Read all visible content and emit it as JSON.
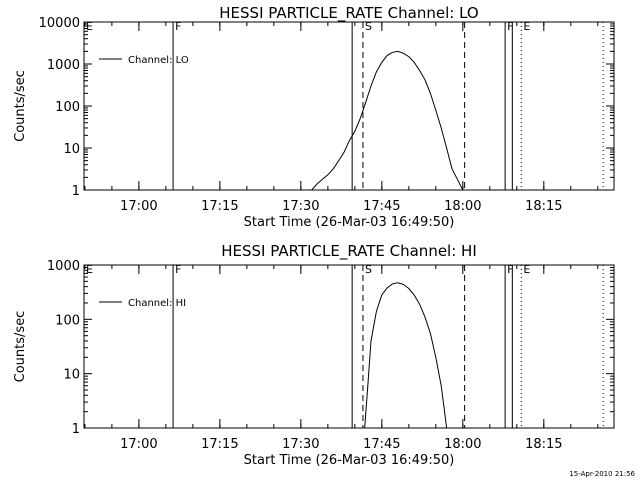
{
  "timestamp": "15-Apr-2010 21:56",
  "chart_data": [
    {
      "type": "line",
      "title": "HESSI PARTICLE_RATE Channel: LO",
      "xlabel": "Start Time (26-Mar-03 16:49:50)",
      "ylabel": "Counts/sec",
      "yscale": "log",
      "ylim": [
        1,
        10000
      ],
      "y_ticks": [
        "1",
        "10",
        "100",
        "1000",
        "10000"
      ],
      "xlim": [
        "16:49:50",
        "18:28:00"
      ],
      "x_ticks": [
        "17:00",
        "17:15",
        "17:30",
        "17:45",
        "18:00",
        "18:15"
      ],
      "legend": {
        "label": "Channel: LO",
        "placement": "top-left"
      },
      "grid": false,
      "series": [
        {
          "name": "Channel: LO",
          "x": [
            "17:32:00",
            "17:33:00",
            "17:34:00",
            "17:35:00",
            "17:36:00",
            "17:37:00",
            "17:38:00",
            "17:39:00",
            "17:40:00",
            "17:41:00",
            "17:42:00",
            "17:43:00",
            "17:44:00",
            "17:45:00",
            "17:46:00",
            "17:47:00",
            "17:48:00",
            "17:49:00",
            "17:50:00",
            "17:51:00",
            "17:52:00",
            "17:53:00",
            "17:54:00",
            "17:55:00",
            "17:56:00",
            "17:57:00",
            "17:58:00",
            "17:59:00",
            "18:00:00"
          ],
          "y": [
            1,
            1.4,
            1.8,
            2.3,
            3.2,
            5,
            8,
            15,
            25,
            50,
            120,
            300,
            650,
            1100,
            1600,
            1900,
            2000,
            1800,
            1500,
            1100,
            700,
            420,
            200,
            80,
            30,
            10,
            3.2,
            1.8,
            1
          ]
        }
      ],
      "markers": [
        {
          "label": "E",
          "time": "16:49:50",
          "style": "solid"
        },
        {
          "label": "F",
          "time": "17:06:20",
          "style": "solid"
        },
        {
          "label": "",
          "time": "17:39:30",
          "style": "solid"
        },
        {
          "label": "S",
          "time": "17:41:30",
          "style": "dashed"
        },
        {
          "label": "",
          "time": "18:00:20",
          "style": "dashed"
        },
        {
          "label": "F",
          "time": "18:07:50",
          "style": "solid"
        },
        {
          "label": "",
          "time": "18:09:10",
          "style": "solid"
        },
        {
          "label": "E",
          "time": "18:10:50",
          "style": "dotted"
        },
        {
          "label": "",
          "time": "18:26:00",
          "style": "dotted"
        }
      ]
    },
    {
      "type": "line",
      "title": "HESSI PARTICLE_RATE Channel: HI",
      "xlabel": "Start Time (26-Mar-03 16:49:50)",
      "ylabel": "Counts/sec",
      "yscale": "log",
      "ylim": [
        1,
        1000
      ],
      "y_ticks": [
        "1",
        "10",
        "100",
        "1000"
      ],
      "xlim": [
        "16:49:50",
        "18:28:00"
      ],
      "x_ticks": [
        "17:00",
        "17:15",
        "17:30",
        "17:45",
        "18:00",
        "18:15"
      ],
      "legend": {
        "label": "Channel: HI",
        "placement": "top-left"
      },
      "grid": false,
      "series": [
        {
          "name": "Channel: HI",
          "x": [
            "17:41:50",
            "17:42:30",
            "17:43:00",
            "17:44:00",
            "17:45:00",
            "17:46:00",
            "17:47:00",
            "17:48:00",
            "17:49:00",
            "17:50:00",
            "17:51:00",
            "17:52:00",
            "17:53:00",
            "17:54:00",
            "17:55:00",
            "17:56:00",
            "17:56:30",
            "17:57:00"
          ],
          "y": [
            1,
            8,
            40,
            140,
            280,
            380,
            450,
            470,
            440,
            370,
            280,
            190,
            110,
            55,
            20,
            6,
            2.5,
            1
          ]
        }
      ],
      "markers": [
        {
          "label": "E",
          "time": "16:49:50",
          "style": "solid"
        },
        {
          "label": "F",
          "time": "17:06:20",
          "style": "solid"
        },
        {
          "label": "",
          "time": "17:39:30",
          "style": "solid"
        },
        {
          "label": "S",
          "time": "17:41:30",
          "style": "dashed"
        },
        {
          "label": "",
          "time": "18:00:20",
          "style": "dashed"
        },
        {
          "label": "F",
          "time": "18:07:50",
          "style": "solid"
        },
        {
          "label": "",
          "time": "18:09:10",
          "style": "solid"
        },
        {
          "label": "E",
          "time": "18:10:50",
          "style": "dotted"
        },
        {
          "label": "",
          "time": "18:26:00",
          "style": "dotted"
        }
      ]
    }
  ]
}
